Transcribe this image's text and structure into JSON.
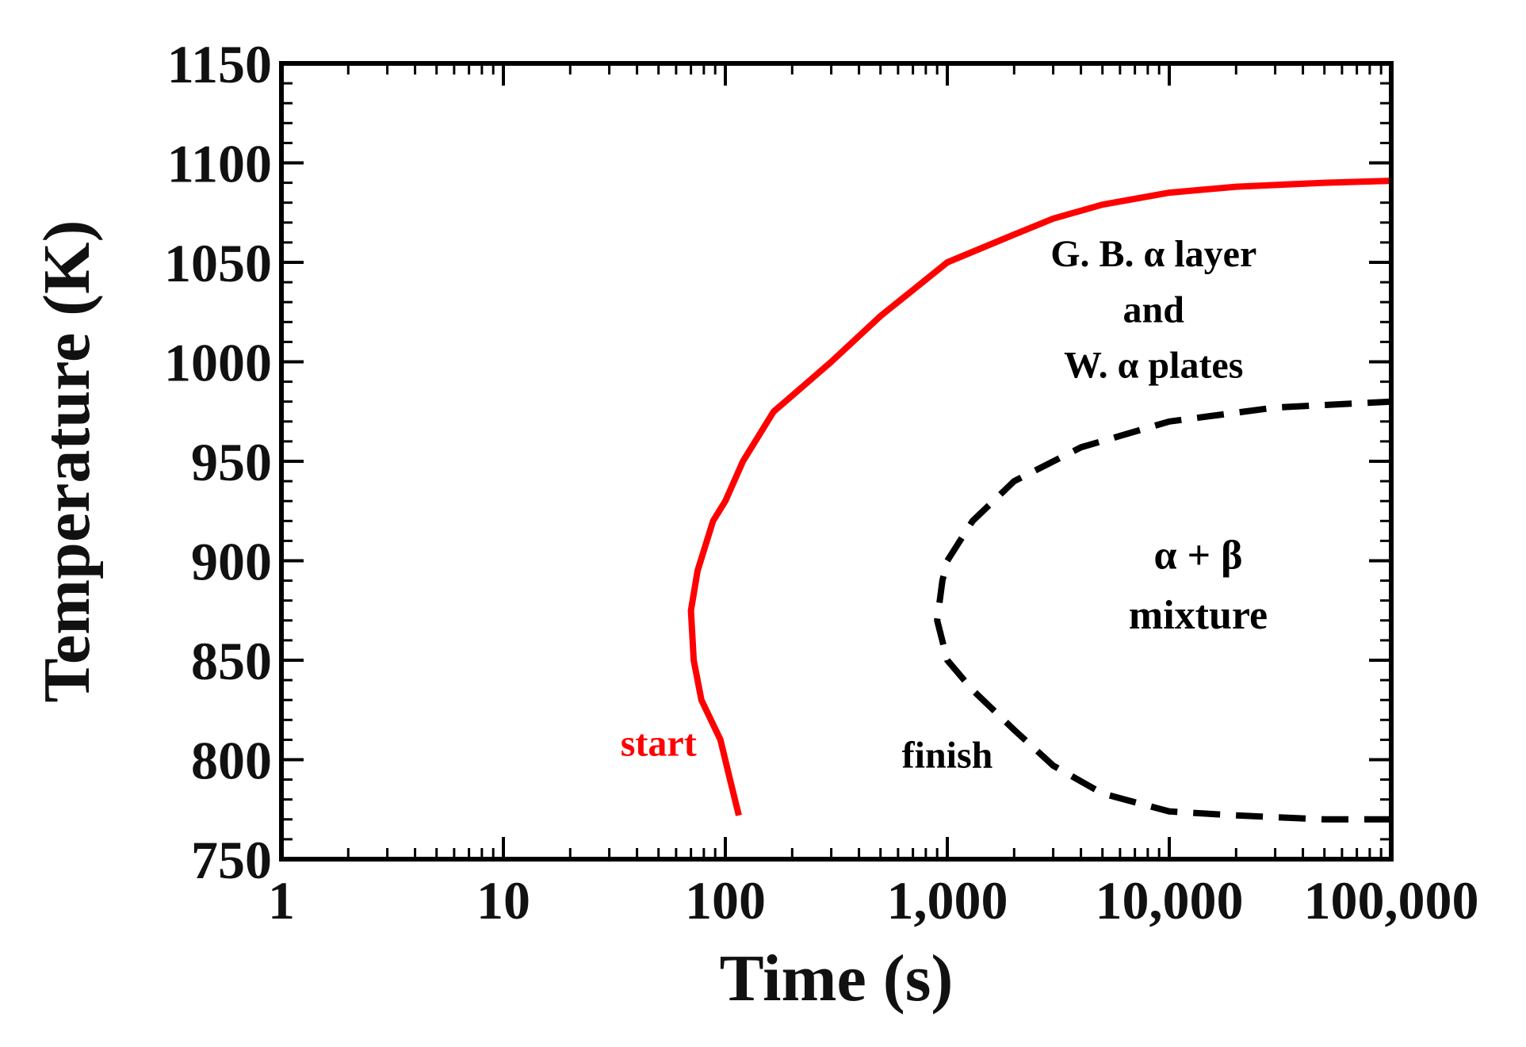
{
  "chart_data": {
    "type": "line",
    "title": "",
    "xlabel": "Time (s)",
    "ylabel": "Temperature (K)",
    "x_scale": "log",
    "xlim": [
      1,
      100000
    ],
    "ylim": [
      750,
      1150
    ],
    "grid": false,
    "x_tick_values": [
      1,
      10,
      100,
      1000,
      10000,
      100000
    ],
    "x_tick_labels": [
      "1",
      "10",
      "100",
      "1,000",
      "10,000",
      "100,000"
    ],
    "y_tick_values": [
      750,
      800,
      850,
      900,
      950,
      1000,
      1050,
      1100,
      1150
    ],
    "y_tick_labels": [
      "750",
      "800",
      "850",
      "900",
      "950",
      "1000",
      "1050",
      "1100",
      "1150"
    ],
    "series": [
      {
        "name": "start",
        "color": "#ff0000",
        "style": "solid",
        "points": [
          [
            115,
            772
          ],
          [
            105,
            790
          ],
          [
            95,
            810
          ],
          [
            78,
            830
          ],
          [
            72,
            850
          ],
          [
            70,
            875
          ],
          [
            75,
            895
          ],
          [
            88,
            920
          ],
          [
            100,
            930
          ],
          [
            120,
            950
          ],
          [
            165,
            975
          ],
          [
            200,
            983
          ],
          [
            300,
            1000
          ],
          [
            500,
            1023
          ],
          [
            1000,
            1050
          ],
          [
            2000,
            1064
          ],
          [
            3000,
            1072
          ],
          [
            5000,
            1079
          ],
          [
            10000,
            1085
          ],
          [
            20000,
            1088
          ],
          [
            50000,
            1090
          ],
          [
            100000,
            1091
          ]
        ]
      },
      {
        "name": "finish",
        "color": "#000000",
        "style": "dashed",
        "points": [
          [
            100000,
            770
          ],
          [
            50000,
            770
          ],
          [
            20000,
            772
          ],
          [
            10000,
            774
          ],
          [
            5000,
            783
          ],
          [
            3000,
            797
          ],
          [
            2000,
            815
          ],
          [
            1300,
            835
          ],
          [
            1000,
            850
          ],
          [
            900,
            870
          ],
          [
            950,
            890
          ],
          [
            1000,
            900
          ],
          [
            1300,
            920
          ],
          [
            2000,
            940
          ],
          [
            4000,
            957
          ],
          [
            10000,
            970
          ],
          [
            30000,
            977
          ],
          [
            100000,
            980
          ]
        ]
      }
    ],
    "annotations": [
      {
        "text": "start",
        "color": "#ff0000",
        "x": 50,
        "y": 802
      },
      {
        "text": "finish",
        "color": "#000000",
        "x": 1000,
        "y": 796
      },
      {
        "text": "G. B. α layer",
        "color": "#000000",
        "x": 8500,
        "y": 1048
      },
      {
        "text": "and",
        "color": "#000000",
        "x": 8500,
        "y": 1020
      },
      {
        "text": "W. α plates",
        "color": "#000000",
        "x": 8500,
        "y": 992
      },
      {
        "text": "α + β",
        "color": "#000000",
        "x": 13500,
        "y": 896
      },
      {
        "text": "mixture",
        "color": "#000000",
        "x": 13500,
        "y": 866
      }
    ]
  }
}
